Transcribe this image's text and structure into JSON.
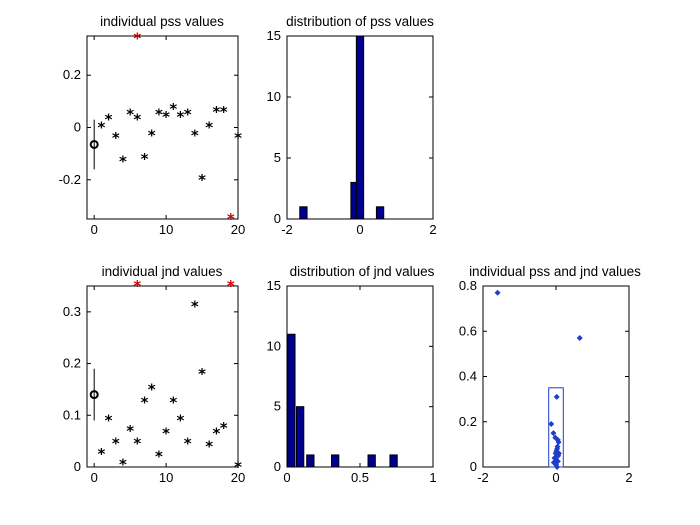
{
  "chart_data": [
    {
      "id": "pss_values",
      "type": "scatter",
      "title": "individual pss values",
      "xlim": [
        -1,
        20
      ],
      "ylim": [
        -0.35,
        0.35
      ],
      "xticks": [
        0,
        10,
        20
      ],
      "yticks": [
        0.2,
        0,
        -0.2
      ],
      "ytick_labels": [
        "0.2",
        "0",
        "-0.2"
      ],
      "series": [
        {
          "marker": "asterisk",
          "color": "#000000",
          "x": [
            1,
            2,
            3,
            4,
            5,
            6,
            7,
            8,
            9,
            10,
            11,
            12,
            13,
            14,
            15,
            16,
            17,
            18,
            20
          ],
          "y": [
            0.0,
            0.03,
            -0.04,
            -0.13,
            0.05,
            0.03,
            -0.12,
            -0.03,
            0.05,
            0.04,
            0.07,
            0.04,
            0.05,
            -0.03,
            -0.2,
            0.0,
            0.06,
            0.06,
            -0.04
          ]
        },
        {
          "marker": "asterisk",
          "color": "#cc0000",
          "x": [
            6,
            19
          ],
          "y": [
            0.34,
            -0.35
          ]
        },
        {
          "marker": "circle",
          "color": "#000000",
          "x": [
            0
          ],
          "y": [
            -0.065
          ],
          "errorbar": [
            -0.16,
            0.03
          ]
        }
      ]
    },
    {
      "id": "pss_distribution",
      "type": "bar",
      "title": "distribution of pss values",
      "xlim": [
        -2,
        2
      ],
      "ylim": [
        0,
        15
      ],
      "xticks": [
        -2,
        0,
        2
      ],
      "yticks": [
        15,
        10,
        5,
        0
      ],
      "bar_width": 0.2,
      "bars": [
        {
          "x": -1.55,
          "value": 1
        },
        {
          "x": -0.15,
          "value": 3
        },
        {
          "x": 0.0,
          "value": 15
        },
        {
          "x": 0.55,
          "value": 1
        }
      ]
    },
    {
      "id": "jnd_values",
      "type": "scatter",
      "title": "individual jnd values",
      "xlim": [
        -1,
        20
      ],
      "ylim": [
        0,
        0.35
      ],
      "xticks": [
        0,
        10,
        20
      ],
      "yticks": [
        0.3,
        0.2,
        0.1,
        0
      ],
      "series": [
        {
          "marker": "asterisk",
          "color": "#000000",
          "x": [
            1,
            2,
            3,
            4,
            5,
            6,
            7,
            8,
            9,
            10,
            11,
            12,
            13,
            14,
            15,
            16,
            17,
            18,
            20
          ],
          "y": [
            0.025,
            0.09,
            0.045,
            0.005,
            0.07,
            0.045,
            0.125,
            0.15,
            0.02,
            0.065,
            0.125,
            0.09,
            0.045,
            0.31,
            0.18,
            0.04,
            0.065,
            0.075,
            0.0
          ]
        },
        {
          "marker": "asterisk",
          "color": "#cc0000",
          "x": [
            6,
            19
          ],
          "y": [
            0.35,
            0.35
          ]
        },
        {
          "marker": "circle",
          "color": "#000000",
          "x": [
            0
          ],
          "y": [
            0.14
          ],
          "errorbar": [
            0.09,
            0.19
          ]
        }
      ]
    },
    {
      "id": "jnd_distribution",
      "type": "bar",
      "title": "distribution of jnd values",
      "xlim": [
        0,
        1
      ],
      "ylim": [
        0,
        15
      ],
      "xticks": [
        0,
        0.5,
        1
      ],
      "xtick_labels": [
        "0",
        "0.5",
        "1"
      ],
      "yticks": [
        15,
        10,
        5,
        0
      ],
      "bar_width": 0.05,
      "bars": [
        {
          "x": 0.03,
          "value": 11
        },
        {
          "x": 0.09,
          "value": 5
        },
        {
          "x": 0.16,
          "value": 1
        },
        {
          "x": 0.33,
          "value": 1
        },
        {
          "x": 0.58,
          "value": 1
        },
        {
          "x": 0.73,
          "value": 1
        }
      ]
    },
    {
      "id": "pss_jnd_scatter",
      "type": "scatter",
      "title": "individual pss and jnd values",
      "xlim": [
        -2,
        2
      ],
      "ylim": [
        0,
        0.8
      ],
      "xticks": [
        -2,
        0,
        2
      ],
      "yticks": [
        0.8,
        0.6,
        0.4,
        0.2,
        0
      ],
      "series": [
        {
          "marker": "diamond",
          "color": "#1f3fc8",
          "x": [
            -1.6,
            0.65,
            0.02,
            -0.13,
            -0.07,
            -0.02,
            0.05,
            0.07,
            0.04,
            0.03,
            0.01,
            -0.01,
            0.06,
            0.0,
            -0.04,
            0.02,
            -0.06,
            0.05,
            0.08,
            0.03,
            0.0
          ],
          "y": [
            0.77,
            0.57,
            0.31,
            0.19,
            0.15,
            0.13,
            0.12,
            0.11,
            0.09,
            0.08,
            0.07,
            0.06,
            0.05,
            0.045,
            0.04,
            0.03,
            0.02,
            0.025,
            0.06,
            0.0,
            0.01
          ]
        }
      ],
      "rect": {
        "x0": -0.2,
        "x1": 0.2,
        "y0": 0,
        "y1": 0.35
      }
    }
  ],
  "colors": {
    "bar": "#00008f",
    "outlier": "#cc0000",
    "scatter_blue": "#1f3fc8"
  }
}
